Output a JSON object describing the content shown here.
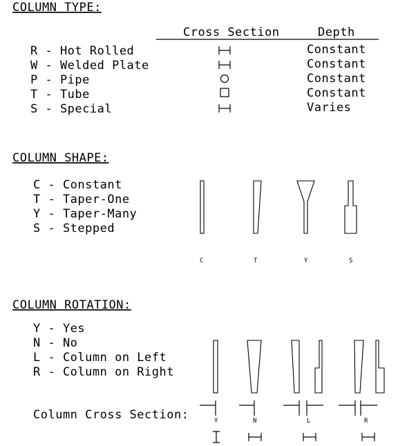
{
  "column_type": {
    "heading": "COLUMN TYPE:",
    "col_headers": {
      "cross_section": "Cross Section",
      "depth": "Depth"
    },
    "rows": [
      {
        "label": "R - Hot Rolled",
        "icon": "i-beam-icon",
        "depth": "Constant"
      },
      {
        "label": "W - Welded Plate",
        "icon": "i-beam-icon",
        "depth": "Constant"
      },
      {
        "label": "P - Pipe",
        "icon": "circle-icon",
        "depth": "Constant"
      },
      {
        "label": "T - Tube",
        "icon": "square-icon",
        "depth": "Constant"
      },
      {
        "label": "S - Special",
        "icon": "i-beam-icon",
        "depth": "Varies"
      }
    ]
  },
  "column_shape": {
    "heading": "COLUMN SHAPE:",
    "options": [
      "C - Constant",
      "T - Taper-One",
      "Y - Taper-Many",
      "S - Stepped"
    ],
    "diagram_labels": [
      "C",
      "T",
      "Y",
      "S"
    ]
  },
  "column_rotation": {
    "heading": "COLUMN ROTATION:",
    "options": [
      "Y - Yes",
      "N - No",
      "L - Column on Left",
      "R - Column on Right"
    ],
    "cross_section_label": "Column Cross Section:",
    "diagram_labels": [
      "Y",
      "N",
      "L",
      "R"
    ]
  }
}
